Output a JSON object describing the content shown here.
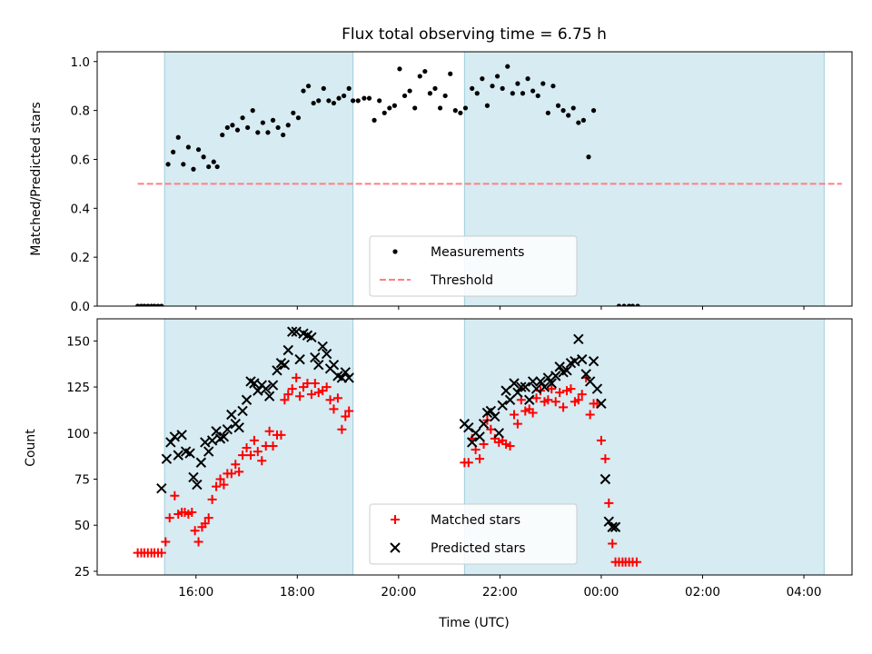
{
  "chart_data": [
    {
      "type": "scatter",
      "title": "Flux total observing time = 6.75 h",
      "ylabel": "Matched/Predicted stars",
      "xlabel": "",
      "xlim_hours": [
        14.05,
        28.95
      ],
      "ylim": [
        0.0,
        1.04
      ],
      "yticks": [
        0.0,
        0.2,
        0.4,
        0.6,
        0.8,
        1.0
      ],
      "ytick_labels": [
        "0.0",
        "0.2",
        "0.4",
        "0.6",
        "0.8",
        "1.0"
      ],
      "legend": {
        "placement": "lower-center",
        "entries": [
          "Measurements",
          "Threshold"
        ]
      },
      "shaded_intervals": [
        [
          15.38,
          19.1
        ],
        [
          21.3,
          28.4
        ]
      ],
      "threshold": {
        "name": "Threshold",
        "value": 0.5,
        "x_range": [
          14.85,
          28.75
        ],
        "color": "#ff7f7f",
        "style": "dashed"
      },
      "series": [
        {
          "name": "Measurements",
          "color": "#000000",
          "x": [
            14.85,
            14.92,
            14.98,
            15.05,
            15.12,
            15.18,
            15.25,
            15.32,
            15.45,
            15.55,
            15.65,
            15.75,
            15.85,
            15.95,
            16.05,
            16.15,
            16.25,
            16.35,
            16.42,
            16.52,
            16.62,
            16.72,
            16.82,
            16.92,
            17.02,
            17.12,
            17.22,
            17.32,
            17.42,
            17.52,
            17.62,
            17.72,
            17.82,
            17.92,
            18.02,
            18.12,
            18.22,
            18.32,
            18.42,
            18.52,
            18.62,
            18.72,
            18.82,
            18.92,
            19.02,
            19.1,
            19.2,
            19.32,
            19.42,
            19.52,
            19.62,
            19.72,
            19.82,
            19.92,
            20.02,
            20.12,
            20.22,
            20.32,
            20.42,
            20.52,
            20.62,
            20.72,
            20.82,
            20.92,
            21.02,
            21.12,
            21.22,
            21.32,
            21.45,
            21.55,
            21.65,
            21.75,
            21.85,
            21.95,
            22.05,
            22.15,
            22.25,
            22.35,
            22.45,
            22.55,
            22.65,
            22.75,
            22.85,
            22.95,
            23.05,
            23.15,
            23.25,
            23.35,
            23.45,
            23.55,
            23.65,
            23.75,
            23.85,
            24.35,
            24.45,
            24.55,
            24.62,
            24.72
          ],
          "y": [
            0,
            0,
            0,
            0,
            0,
            0,
            0,
            0,
            0.58,
            0.63,
            0.69,
            0.58,
            0.65,
            0.56,
            0.64,
            0.61,
            0.57,
            0.59,
            0.57,
            0.7,
            0.73,
            0.74,
            0.72,
            0.77,
            0.73,
            0.8,
            0.71,
            0.75,
            0.71,
            0.76,
            0.73,
            0.7,
            0.74,
            0.79,
            0.77,
            0.88,
            0.9,
            0.83,
            0.84,
            0.89,
            0.84,
            0.83,
            0.85,
            0.86,
            0.89,
            0.84,
            0.84,
            0.85,
            0.85,
            0.76,
            0.84,
            0.79,
            0.81,
            0.82,
            0.97,
            0.86,
            0.88,
            0.81,
            0.94,
            0.96,
            0.87,
            0.89,
            0.81,
            0.86,
            0.95,
            0.8,
            0.79,
            0.81,
            0.89,
            0.87,
            0.93,
            0.82,
            0.9,
            0.94,
            0.89,
            0.98,
            0.87,
            0.91,
            0.87,
            0.93,
            0.88,
            0.86,
            0.91,
            0.79,
            0.9,
            0.82,
            0.8,
            0.78,
            0.81,
            0.75,
            0.76,
            0.61,
            0.8,
            0,
            0,
            0,
            0,
            0
          ]
        }
      ]
    },
    {
      "type": "scatter",
      "title": "",
      "ylabel": "Count",
      "xlabel": "Time (UTC)",
      "xlim_hours": [
        14.05,
        28.95
      ],
      "ylim": [
        23,
        162
      ],
      "yticks": [
        25,
        50,
        75,
        100,
        125,
        150
      ],
      "ytick_labels": [
        "25",
        "50",
        "75",
        "100",
        "125",
        "150"
      ],
      "xticks_hours": [
        16,
        18,
        20,
        22,
        24,
        26,
        28
      ],
      "xtick_labels": [
        "16:00",
        "18:00",
        "20:00",
        "22:00",
        "00:00",
        "02:00",
        "04:00"
      ],
      "legend": {
        "placement": "lower-center",
        "entries": [
          "Matched stars",
          "Predicted stars"
        ]
      },
      "shaded_intervals": [
        [
          15.38,
          19.1
        ],
        [
          21.3,
          28.4
        ]
      ],
      "series": [
        {
          "name": "Matched stars",
          "marker": "plus",
          "color": "#ff0000",
          "x": [
            14.85,
            14.92,
            14.98,
            15.05,
            15.12,
            15.18,
            15.25,
            15.32,
            15.4,
            15.48,
            15.58,
            15.65,
            15.72,
            15.78,
            15.85,
            15.92,
            15.98,
            16.05,
            16.12,
            16.18,
            16.25,
            16.32,
            16.4,
            16.48,
            16.55,
            16.62,
            16.7,
            16.78,
            16.85,
            16.92,
            17.0,
            17.08,
            17.15,
            17.22,
            17.3,
            17.38,
            17.45,
            17.52,
            17.6,
            17.68,
            17.75,
            17.82,
            17.9,
            17.98,
            18.05,
            18.12,
            18.2,
            18.28,
            18.35,
            18.42,
            18.5,
            18.58,
            18.65,
            18.72,
            18.8,
            18.88,
            18.95,
            19.02,
            21.3,
            21.38,
            21.45,
            21.52,
            21.6,
            21.68,
            21.75,
            21.82,
            21.9,
            21.98,
            22.05,
            22.12,
            22.2,
            22.28,
            22.35,
            22.42,
            22.5,
            22.58,
            22.65,
            22.72,
            22.8,
            22.88,
            22.95,
            23.02,
            23.1,
            23.18,
            23.25,
            23.32,
            23.4,
            23.48,
            23.55,
            23.62,
            23.7,
            23.78,
            23.85,
            23.92,
            24.0,
            24.08,
            24.15,
            24.22,
            24.28,
            24.35,
            24.42,
            24.48,
            24.55,
            24.62,
            24.7
          ],
          "y": [
            35,
            35,
            35,
            35,
            35,
            35,
            35,
            35,
            41,
            54,
            66,
            56,
            57,
            57,
            56,
            57,
            47,
            41,
            49,
            51,
            54,
            64,
            71,
            75,
            72,
            78,
            78,
            83,
            79,
            88,
            92,
            88,
            96,
            90,
            85,
            93,
            101,
            93,
            99,
            99,
            118,
            121,
            124,
            130,
            120,
            125,
            127,
            121,
            127,
            122,
            123,
            125,
            118,
            113,
            119,
            102,
            109,
            112,
            84,
            84,
            97,
            91,
            86,
            94,
            107,
            102,
            97,
            95,
            96,
            94,
            93,
            110,
            105,
            118,
            112,
            113,
            111,
            119,
            123,
            117,
            118,
            124,
            117,
            122,
            114,
            123,
            124,
            117,
            118,
            121,
            130,
            110,
            116,
            116,
            96,
            86,
            62,
            40,
            30,
            30,
            30,
            30,
            30,
            30,
            30
          ]
        },
        {
          "name": "Predicted stars",
          "marker": "x",
          "color": "#000000",
          "x": [
            15.32,
            15.42,
            15.5,
            15.58,
            15.65,
            15.72,
            15.8,
            15.88,
            15.95,
            16.02,
            16.1,
            16.18,
            16.25,
            16.32,
            16.4,
            16.48,
            16.55,
            16.62,
            16.7,
            16.78,
            16.85,
            16.92,
            17.0,
            17.08,
            17.15,
            17.22,
            17.3,
            17.38,
            17.45,
            17.52,
            17.6,
            17.68,
            17.75,
            17.82,
            17.9,
            17.98,
            18.05,
            18.12,
            18.2,
            18.28,
            18.35,
            18.42,
            18.5,
            18.58,
            18.65,
            18.72,
            18.8,
            18.88,
            18.95,
            19.02,
            21.3,
            21.38,
            21.45,
            21.52,
            21.6,
            21.68,
            21.75,
            21.82,
            21.9,
            21.98,
            22.05,
            22.12,
            22.2,
            22.28,
            22.35,
            22.42,
            22.5,
            22.58,
            22.65,
            22.72,
            22.8,
            22.88,
            22.95,
            23.02,
            23.1,
            23.18,
            23.25,
            23.32,
            23.4,
            23.48,
            23.55,
            23.62,
            23.7,
            23.78,
            23.85,
            23.92,
            24.0,
            24.08,
            24.15,
            24.22,
            24.28
          ],
          "y": [
            70,
            86,
            95,
            98,
            88,
            99,
            90,
            89,
            76,
            72,
            84,
            95,
            90,
            96,
            101,
            97,
            98,
            102,
            110,
            105,
            103,
            112,
            118,
            128,
            127,
            123,
            126,
            124,
            120,
            126,
            134,
            138,
            137,
            145,
            155,
            155,
            140,
            154,
            153,
            152,
            141,
            137,
            147,
            143,
            135,
            137,
            131,
            130,
            133,
            130,
            105,
            103,
            95,
            100,
            98,
            105,
            111,
            112,
            109,
            100,
            115,
            123,
            118,
            127,
            122,
            125,
            125,
            118,
            128,
            124,
            128,
            125,
            130,
            127,
            131,
            136,
            133,
            134,
            138,
            139,
            151,
            140,
            132,
            128,
            139,
            124,
            116,
            75,
            52,
            49,
            49
          ]
        }
      ]
    }
  ]
}
